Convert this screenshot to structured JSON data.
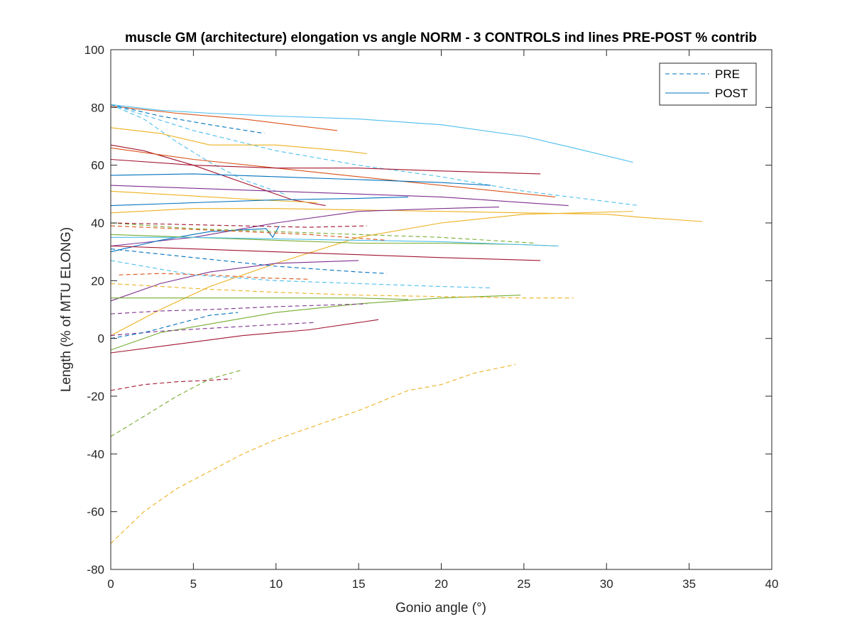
{
  "chart_data": {
    "type": "line",
    "title": "muscle GM (architecture) elongation vs angle NORM - 3 CONTROLS ind lines PRE-POST % contrib",
    "xlabel": "Gonio angle (°)",
    "ylabel": "Length (% of MTU ELONG)",
    "xlim": [
      0,
      40
    ],
    "ylim": [
      -80,
      100
    ],
    "xticks": [
      0,
      5,
      10,
      15,
      20,
      25,
      30,
      35,
      40
    ],
    "yticks": [
      -80,
      -60,
      -40,
      -20,
      0,
      20,
      40,
      60,
      80,
      100
    ],
    "xtick_labels": [
      "0",
      "5",
      "10",
      "15",
      "20",
      "25",
      "30",
      "35",
      "40"
    ],
    "ytick_labels": [
      "-80",
      "-60",
      "-40",
      "-20",
      "0",
      "20",
      "40",
      "60",
      "80",
      "100"
    ],
    "grid": false,
    "legend_position": "top-right",
    "legend": [
      {
        "label": "PRE",
        "style": "dashed",
        "color": "#0072BD"
      },
      {
        "label": "POST",
        "style": "solid",
        "color": "#0072BD"
      }
    ],
    "series": [
      {
        "color": "#4DBEEE",
        "style": "solid",
        "x": [
          0,
          3,
          6,
          10,
          15,
          20,
          25,
          28,
          31.6
        ],
        "y": [
          81,
          79,
          78,
          77,
          76,
          74,
          70,
          66,
          61
        ]
      },
      {
        "color": "#D95319",
        "style": "solid",
        "x": [
          0,
          4,
          8,
          13.7
        ],
        "y": [
          80.5,
          78,
          76,
          72
        ]
      },
      {
        "color": "#0072BD",
        "style": "dashed",
        "x": [
          0,
          3,
          6,
          9.3
        ],
        "y": [
          81,
          77,
          74,
          71
        ]
      },
      {
        "color": "#4DBEEE",
        "style": "dashed",
        "x": [
          0,
          5,
          10,
          15,
          20,
          25,
          32
        ],
        "y": [
          81,
          72,
          65,
          60,
          56,
          51,
          46
        ]
      },
      {
        "color": "#4DBEEE",
        "style": "dashed",
        "x": [
          0,
          2,
          4,
          6,
          8,
          10.5
        ],
        "y": [
          81,
          76,
          68,
          61,
          55,
          50
        ]
      },
      {
        "color": "#EDB120",
        "style": "solid",
        "x": [
          0,
          3,
          6,
          10,
          14,
          15.5
        ],
        "y": [
          73,
          71,
          67,
          67,
          65,
          64
        ]
      },
      {
        "color": "#A2142F",
        "style": "solid",
        "x": [
          0,
          2,
          5,
          8,
          11,
          13
        ],
        "y": [
          67,
          65,
          60,
          54,
          48,
          46
        ]
      },
      {
        "color": "#D95319",
        "style": "solid",
        "x": [
          0,
          5,
          10,
          15,
          20,
          26.9
        ],
        "y": [
          66,
          62,
          59,
          56,
          53,
          49
        ]
      },
      {
        "color": "#A2142F",
        "style": "solid",
        "x": [
          0,
          5,
          10,
          15,
          20,
          26
        ],
        "y": [
          62,
          60,
          59,
          59,
          58,
          57
        ]
      },
      {
        "color": "#0072BD",
        "style": "solid",
        "x": [
          0,
          5,
          10,
          15,
          20,
          23
        ],
        "y": [
          56.5,
          57,
          56,
          55,
          54,
          53
        ]
      },
      {
        "color": "#7E2F8E",
        "style": "solid",
        "x": [
          0,
          5,
          10,
          15,
          20,
          27.7
        ],
        "y": [
          53,
          52,
          51,
          50,
          49,
          46
        ]
      },
      {
        "color": "#EDB120",
        "style": "solid",
        "x": [
          0,
          3,
          6,
          9,
          12.5
        ],
        "y": [
          51,
          50,
          49,
          48,
          47
        ]
      },
      {
        "color": "#0072BD",
        "style": "solid",
        "x": [
          0,
          5,
          10,
          15,
          18
        ],
        "y": [
          46,
          47,
          48,
          48.5,
          49
        ]
      },
      {
        "color": "#EDB120",
        "style": "solid",
        "x": [
          0,
          5,
          10,
          15,
          20,
          25,
          30,
          32,
          35.8
        ],
        "y": [
          43.5,
          45,
          45,
          44.5,
          44,
          43.5,
          43,
          42,
          40.5
        ]
      },
      {
        "color": "#EDB120",
        "style": "solid",
        "x": [
          0,
          3,
          6,
          10,
          15,
          20,
          25,
          31.6
        ],
        "y": [
          1,
          10,
          18,
          26,
          35,
          40,
          43,
          44
        ]
      },
      {
        "color": "#7E2F8E",
        "style": "solid",
        "x": [
          0,
          5,
          10,
          15,
          20,
          23.5
        ],
        "y": [
          32,
          35,
          40,
          44,
          45,
          45.5
        ]
      },
      {
        "color": "#7E2F8E",
        "style": "solid",
        "x": [
          0,
          3,
          6,
          10,
          15
        ],
        "y": [
          13,
          19,
          23,
          26,
          27
        ]
      },
      {
        "color": "#0072BD",
        "style": "solid",
        "x": [
          0,
          3,
          6,
          9.4,
          9.8,
          10.2
        ],
        "y": [
          30,
          34,
          37,
          38,
          35,
          39
        ]
      },
      {
        "color": "#77AC30",
        "style": "solid",
        "x": [
          0,
          5,
          10,
          15,
          20,
          25,
          27
        ],
        "y": [
          36,
          35,
          34,
          33,
          33,
          32.5,
          32
        ]
      },
      {
        "color": "#4DBEEE",
        "style": "solid",
        "x": [
          0,
          5,
          10,
          15,
          20,
          27.1
        ],
        "y": [
          35,
          35,
          34.5,
          34,
          33.5,
          32
        ]
      },
      {
        "color": "#A2142F",
        "style": "solid",
        "x": [
          0,
          5,
          10,
          15,
          20,
          26
        ],
        "y": [
          32,
          31,
          30,
          29,
          28,
          27
        ]
      },
      {
        "color": "#77AC30",
        "style": "solid",
        "x": [
          0,
          3,
          6,
          10,
          15,
          20,
          24.8
        ],
        "y": [
          -4,
          2,
          5,
          9,
          12,
          14,
          15
        ]
      },
      {
        "color": "#77AC30",
        "style": "solid",
        "x": [
          0,
          3,
          6,
          10,
          15,
          18
        ],
        "y": [
          14,
          14,
          14,
          14,
          14,
          13.5
        ]
      },
      {
        "color": "#A2142F",
        "style": "solid",
        "x": [
          0,
          4,
          8,
          12,
          16.2
        ],
        "y": [
          -5,
          -2,
          1,
          3,
          6.5
        ]
      },
      {
        "color": "#77AC30",
        "style": "dashed",
        "x": [
          0,
          5,
          10,
          15,
          20,
          25.7
        ],
        "y": [
          40,
          38,
          37,
          36,
          35,
          33
        ]
      },
      {
        "color": "#A2142F",
        "style": "dashed",
        "x": [
          0,
          4,
          8,
          12,
          15.5
        ],
        "y": [
          40,
          39.5,
          39,
          38.5,
          39
        ]
      },
      {
        "color": "#D95319",
        "style": "dashed",
        "x": [
          0,
          4,
          8,
          12,
          16.7
        ],
        "y": [
          39,
          38,
          37,
          36,
          34
        ]
      },
      {
        "color": "#0072BD",
        "style": "dashed",
        "x": [
          0,
          5,
          10,
          15,
          16.7
        ],
        "y": [
          31,
          28,
          25,
          23,
          22.5
        ]
      },
      {
        "color": "#EDB120",
        "style": "dashed",
        "x": [
          0,
          3,
          6,
          10,
          15,
          20,
          25,
          28
        ],
        "y": [
          19,
          18,
          17,
          16,
          15,
          14.5,
          14,
          14
        ]
      },
      {
        "color": "#4DBEEE",
        "style": "dashed",
        "x": [
          0,
          5,
          10,
          15,
          20,
          23
        ],
        "y": [
          27,
          22,
          20,
          19,
          18,
          17.5
        ]
      },
      {
        "color": "#D95319",
        "style": "dashed",
        "x": [
          0.5,
          3,
          6,
          9,
          12
        ],
        "y": [
          22,
          22.5,
          22,
          21,
          20.5
        ]
      },
      {
        "color": "#7E2F8E",
        "style": "dashed",
        "x": [
          0,
          3,
          6,
          10,
          15.5
        ],
        "y": [
          8.5,
          9.5,
          10,
          11,
          12
        ]
      },
      {
        "color": "#7E2F8E",
        "style": "dashed",
        "x": [
          0,
          3,
          6,
          9,
          12.3
        ],
        "y": [
          1,
          2.5,
          3.5,
          4.5,
          5.5
        ]
      },
      {
        "color": "#0072BD",
        "style": "dashed",
        "x": [
          0,
          2,
          4,
          6,
          7.7
        ],
        "y": [
          0,
          2,
          5,
          8,
          9
        ]
      },
      {
        "color": "#A2142F",
        "style": "dashed",
        "x": [
          0,
          2,
          4,
          6,
          7.3
        ],
        "y": [
          -18,
          -16,
          -15,
          -14.5,
          -14
        ]
      },
      {
        "color": "#77AC30",
        "style": "dashed",
        "x": [
          0,
          2,
          4,
          6,
          7.9
        ],
        "y": [
          -34,
          -27,
          -20,
          -14,
          -11
        ]
      },
      {
        "color": "#EDB120",
        "style": "dashed",
        "x": [
          0,
          2,
          4,
          6,
          8,
          10,
          12,
          15,
          18,
          20,
          22,
          24.5
        ],
        "y": [
          -71,
          -60,
          -52,
          -46,
          -40,
          -35,
          -31,
          -25,
          -18,
          -16,
          -12,
          -9
        ]
      }
    ]
  }
}
